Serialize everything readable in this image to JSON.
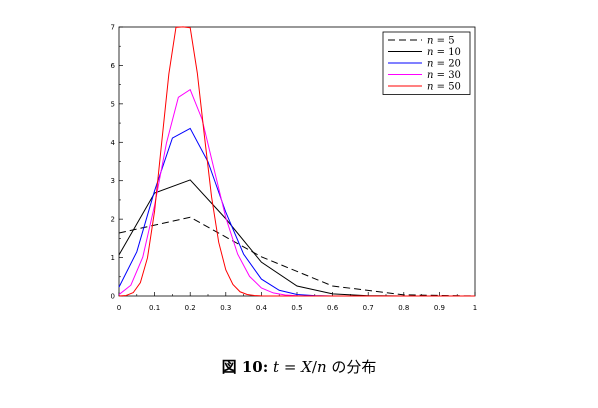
{
  "chart_data": {
    "type": "line",
    "title": "",
    "xlabel": "",
    "ylabel": "",
    "xlim": [
      0,
      1
    ],
    "ylim": [
      0,
      7
    ],
    "x_ticks": [
      "0",
      "0.1",
      "0.2",
      "0.3",
      "0.4",
      "0.5",
      "0.6",
      "0.7",
      "0.8",
      "0.9",
      "1"
    ],
    "y_ticks": [
      "0",
      "1",
      "2",
      "3",
      "4",
      "5",
      "6",
      "7"
    ],
    "legend_position": "top-right",
    "grid": false,
    "series": [
      {
        "name": "n",
        "value": "5",
        "color": "#000000",
        "dash": "dashed",
        "x": [
          0,
          0.2,
          0.4,
          0.6,
          0.8,
          1.0
        ],
        "y": [
          1.64,
          2.05,
          1.02,
          0.26,
          0.03,
          0.0
        ]
      },
      {
        "name": "n",
        "value": "10",
        "color": "#000000",
        "dash": "solid",
        "x": [
          0,
          0.1,
          0.2,
          0.3,
          0.4,
          0.5,
          0.6,
          0.7,
          0.8,
          0.9,
          1.0
        ],
        "y": [
          1.07,
          2.68,
          3.02,
          2.01,
          0.88,
          0.26,
          0.055,
          0.008,
          0.0,
          0.0,
          0.0
        ]
      },
      {
        "name": "n",
        "value": "20",
        "color": "#0000ff",
        "dash": "solid",
        "x": [
          0,
          0.05,
          0.1,
          0.15,
          0.2,
          0.25,
          0.3,
          0.35,
          0.4,
          0.45,
          0.5,
          0.55,
          0.6,
          0.65,
          0.7,
          0.8,
          1.0
        ],
        "y": [
          0.23,
          1.15,
          2.74,
          4.11,
          4.36,
          3.49,
          2.18,
          1.09,
          0.44,
          0.15,
          0.04,
          0.01,
          0.0,
          0.0,
          0.0,
          0.0,
          0.0
        ]
      },
      {
        "name": "n",
        "value": "30",
        "color": "#ff00ff",
        "dash": "solid",
        "x": [
          0,
          0.0333,
          0.0667,
          0.1,
          0.1333,
          0.1667,
          0.2,
          0.2333,
          0.2667,
          0.3,
          0.3333,
          0.3667,
          0.4,
          0.4333,
          0.4667,
          0.5,
          0.5333,
          0.6,
          0.7,
          1.0
        ],
        "y": [
          0.037,
          0.28,
          1.01,
          2.36,
          3.98,
          5.17,
          5.37,
          4.6,
          3.31,
          2.04,
          1.09,
          0.51,
          0.21,
          0.08,
          0.026,
          0.008,
          0.002,
          0.0,
          0.0,
          0.0
        ]
      },
      {
        "name": "n",
        "value": "50",
        "color": "#ff0000",
        "dash": "solid",
        "x": [
          0,
          0.02,
          0.04,
          0.06,
          0.08,
          0.1,
          0.12,
          0.14,
          0.16,
          0.18,
          0.2,
          0.22,
          0.24,
          0.26,
          0.28,
          0.3,
          0.32,
          0.34,
          0.36,
          0.38,
          0.4,
          0.42,
          0.44,
          0.46,
          0.5,
          0.6,
          1.0
        ],
        "y": [
          0.0007,
          0.0143,
          0.0874,
          0.3474,
          0.9932,
          2.2135,
          4.0019,
          5.7742,
          6.9917,
          7.0024,
          6.981,
          5.8,
          4.16,
          2.58,
          1.4,
          0.68,
          0.3,
          0.11,
          0.04,
          0.013,
          0.004,
          0.001,
          0.0,
          0.0,
          0.0,
          0.0,
          0.0
        ]
      }
    ]
  },
  "caption": {
    "label": "図 10:",
    "var_t": "t",
    "equals": "=",
    "var_x": "X",
    "slash": "/",
    "var_n": "n",
    "suffix": "の分布"
  }
}
